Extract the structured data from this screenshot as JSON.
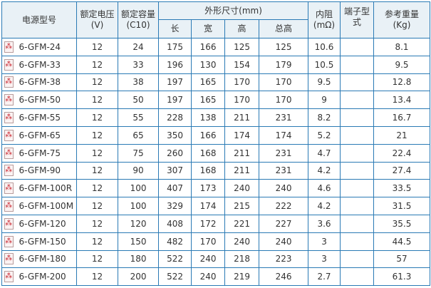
{
  "headers": {
    "model": "电源型号",
    "voltage": "额定电压\n(V)",
    "capacity": "额定容量\n(C10)",
    "dimensions": "外形尺寸(mm)",
    "length": "长",
    "width": "宽",
    "height": "高",
    "total_height": "总高",
    "resistance": "内阻\n(mΩ)",
    "terminal": "端子型\n式",
    "weight": "参考重量\n(Kg)"
  },
  "rows": [
    [
      "6-GFM-24",
      "12",
      "24",
      "175",
      "166",
      "125",
      "125",
      "10.6",
      "",
      "8.1"
    ],
    [
      "6-GFM-33",
      "12",
      "33",
      "196",
      "130",
      "154",
      "179",
      "10.5",
      "",
      "9.5"
    ],
    [
      "6-GFM-38",
      "12",
      "38",
      "197",
      "165",
      "170",
      "170",
      "9.5",
      "",
      "12.8"
    ],
    [
      "6-GFM-50",
      "12",
      "50",
      "197",
      "165",
      "170",
      "170",
      "9",
      "",
      "13.4"
    ],
    [
      "6-GFM-55",
      "12",
      "55",
      "228",
      "138",
      "211",
      "231",
      "8.2",
      "",
      "16.7"
    ],
    [
      "6-GFM-65",
      "12",
      "65",
      "350",
      "166",
      "174",
      "174",
      "5.2",
      "",
      "21"
    ],
    [
      "6-GFM-75",
      "12",
      "75",
      "260",
      "168",
      "211",
      "231",
      "4.7",
      "",
      "22.4"
    ],
    [
      "6-GFM-90",
      "12",
      "90",
      "307",
      "168",
      "211",
      "231",
      "4.2",
      "",
      "27.4"
    ],
    [
      "6-GFM-100R",
      "12",
      "100",
      "407",
      "173",
      "240",
      "240",
      "4.6",
      "",
      "33.5"
    ],
    [
      "6-GFM-100M",
      "12",
      "100",
      "329",
      "174",
      "215",
      "222",
      "4.2",
      "",
      "31.5"
    ],
    [
      "6-GFM-120",
      "12",
      "120",
      "408",
      "172",
      "221",
      "227",
      "3.6",
      "",
      "35.5"
    ],
    [
      "6-GFM-150",
      "12",
      "150",
      "482",
      "170",
      "240",
      "240",
      "3",
      "",
      "44.5"
    ],
    [
      "6-GFM-180",
      "12",
      "180",
      "522",
      "240",
      "218",
      "223",
      "3",
      "",
      "57"
    ],
    [
      "6-GFM-200",
      "12",
      "200",
      "522",
      "240",
      "219",
      "246",
      "2.7",
      "",
      "61.3"
    ]
  ]
}
